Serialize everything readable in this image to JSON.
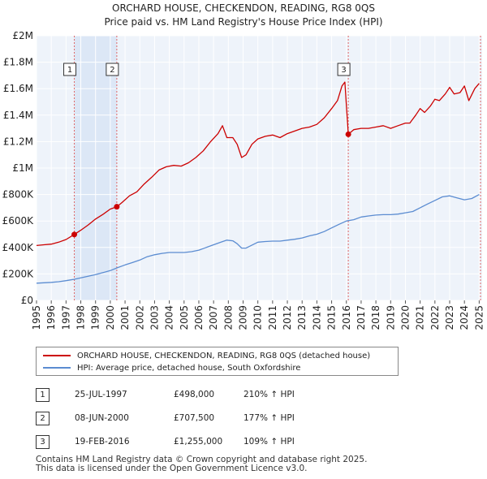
{
  "chart_data": {
    "type": "line",
    "title": "ORCHARD HOUSE, CHECKENDON, READING, RG8 0QS",
    "subtitle": "Price paid vs. HM Land Registry's House Price Index (HPI)",
    "xlabel": "",
    "ylabel": "",
    "xlim": [
      1995,
      2025.2
    ],
    "ylim": [
      0,
      2000000
    ],
    "grid": true,
    "y_ticks": [
      0,
      200000,
      400000,
      600000,
      800000,
      1000000,
      1200000,
      1400000,
      1600000,
      1800000,
      2000000
    ],
    "y_tick_labels": [
      "£0",
      "£200K",
      "£400K",
      "£600K",
      "£800K",
      "£1M",
      "£1.2M",
      "£1.4M",
      "£1.6M",
      "£1.8M",
      "£2M"
    ],
    "x_ticks": [
      1995,
      1996,
      1997,
      1998,
      1999,
      2000,
      2001,
      2002,
      2003,
      2004,
      2005,
      2006,
      2007,
      2008,
      2009,
      2010,
      2011,
      2012,
      2013,
      2014,
      2015,
      2016,
      2017,
      2018,
      2019,
      2020,
      2021,
      2022,
      2023,
      2024,
      2025
    ],
    "x_tick_labels": [
      "1995",
      "1996",
      "1997",
      "1998",
      "1999",
      "2000",
      "2001",
      "2002",
      "2003",
      "2004",
      "2005",
      "2006",
      "2007",
      "2008",
      "2009",
      "2010",
      "2011",
      "2012",
      "2013",
      "2014",
      "2015",
      "2016",
      "2017",
      "2018",
      "2019",
      "2020",
      "2021",
      "2022",
      "2023",
      "2024",
      "2025"
    ],
    "series": [
      {
        "name": "ORCHARD HOUSE, CHECKENDON, READING, RG8 0QS (detached house)",
        "color": "#cc0000",
        "x": [
          1995.0,
          1995.5,
          1996.0,
          1996.5,
          1997.0,
          1997.56,
          1998.0,
          1998.5,
          1999.0,
          1999.5,
          2000.0,
          2000.44,
          2000.8,
          2001.3,
          2001.8,
          2002.3,
          2002.8,
          2003.3,
          2003.8,
          2004.3,
          2004.8,
          2005.3,
          2005.8,
          2006.3,
          2006.8,
          2007.3,
          2007.6,
          2007.9,
          2008.3,
          2008.6,
          2008.9,
          2009.2,
          2009.6,
          2010.0,
          2010.5,
          2011.0,
          2011.5,
          2012.0,
          2012.5,
          2013.0,
          2013.5,
          2014.0,
          2014.5,
          2015.0,
          2015.4,
          2015.7,
          2015.9,
          2016.13,
          2016.5,
          2017.0,
          2017.5,
          2018.0,
          2018.5,
          2019.0,
          2019.5,
          2020.0,
          2020.3,
          2020.7,
          2021.0,
          2021.3,
          2021.7,
          2022.0,
          2022.3,
          2022.7,
          2023.0,
          2023.3,
          2023.7,
          2024.0,
          2024.3,
          2024.7,
          2025.0
        ],
        "values": [
          415000,
          420000,
          425000,
          440000,
          460000,
          498000,
          530000,
          570000,
          615000,
          650000,
          690000,
          707500,
          740000,
          790000,
          820000,
          880000,
          930000,
          985000,
          1010000,
          1020000,
          1015000,
          1040000,
          1080000,
          1130000,
          1200000,
          1260000,
          1320000,
          1230000,
          1230000,
          1180000,
          1080000,
          1100000,
          1180000,
          1220000,
          1240000,
          1250000,
          1230000,
          1260000,
          1280000,
          1300000,
          1310000,
          1330000,
          1380000,
          1450000,
          1510000,
          1620000,
          1650000,
          1255000,
          1290000,
          1300000,
          1300000,
          1310000,
          1320000,
          1300000,
          1320000,
          1340000,
          1340000,
          1400000,
          1450000,
          1420000,
          1470000,
          1520000,
          1510000,
          1560000,
          1610000,
          1560000,
          1570000,
          1620000,
          1510000,
          1600000,
          1640000
        ]
      },
      {
        "name": "HPI: Average price, detached house, South Oxfordshire",
        "color": "#5b8cd1",
        "x": [
          1995.0,
          1995.5,
          1996.0,
          1996.5,
          1997.0,
          1997.5,
          1998.0,
          1998.5,
          1999.0,
          1999.5,
          2000.0,
          2000.5,
          2001.0,
          2001.5,
          2002.0,
          2002.5,
          2003.0,
          2003.5,
          2004.0,
          2004.5,
          2005.0,
          2005.5,
          2006.0,
          2006.5,
          2007.0,
          2007.5,
          2007.9,
          2008.3,
          2008.6,
          2008.9,
          2009.2,
          2009.6,
          2010.0,
          2010.5,
          2011.0,
          2011.5,
          2012.0,
          2012.5,
          2013.0,
          2013.5,
          2014.0,
          2014.5,
          2015.0,
          2015.5,
          2016.0,
          2016.5,
          2017.0,
          2017.5,
          2018.0,
          2018.5,
          2019.0,
          2019.5,
          2020.0,
          2020.5,
          2021.0,
          2021.5,
          2022.0,
          2022.5,
          2023.0,
          2023.5,
          2024.0,
          2024.5,
          2025.0
        ],
        "values": [
          130000,
          133000,
          136000,
          141000,
          149000,
          158000,
          170000,
          182000,
          195000,
          210000,
          225000,
          248000,
          268000,
          286000,
          305000,
          330000,
          345000,
          355000,
          362000,
          362000,
          362000,
          368000,
          380000,
          400000,
          420000,
          440000,
          455000,
          450000,
          428000,
          395000,
          395000,
          418000,
          440000,
          445000,
          448000,
          448000,
          455000,
          462000,
          472000,
          488000,
          500000,
          520000,
          548000,
          575000,
          600000,
          610000,
          630000,
          638000,
          645000,
          648000,
          648000,
          652000,
          662000,
          672000,
          700000,
          728000,
          755000,
          782000,
          790000,
          775000,
          760000,
          770000,
          800000
        ]
      }
    ],
    "sales": [
      {
        "num": "1",
        "date": "25-JUL-1997",
        "price": "£498,000",
        "hpi_change": "210% ↑ HPI",
        "x": 1997.56,
        "value": 498000
      },
      {
        "num": "2",
        "date": "08-JUN-2000",
        "price": "£707,500",
        "hpi_change": "177% ↑ HPI",
        "x": 2000.44,
        "value": 707500
      },
      {
        "num": "3",
        "date": "19-FEB-2016",
        "price": "£1,255,000",
        "hpi_change": "109% ↑ HPI",
        "x": 2016.13,
        "value": 1255000
      }
    ]
  },
  "footer": {
    "line1": "Contains HM Land Registry data © Crown copyright and database right 2025.",
    "line2": "This data is licensed under the Open Government Licence v3.0."
  }
}
